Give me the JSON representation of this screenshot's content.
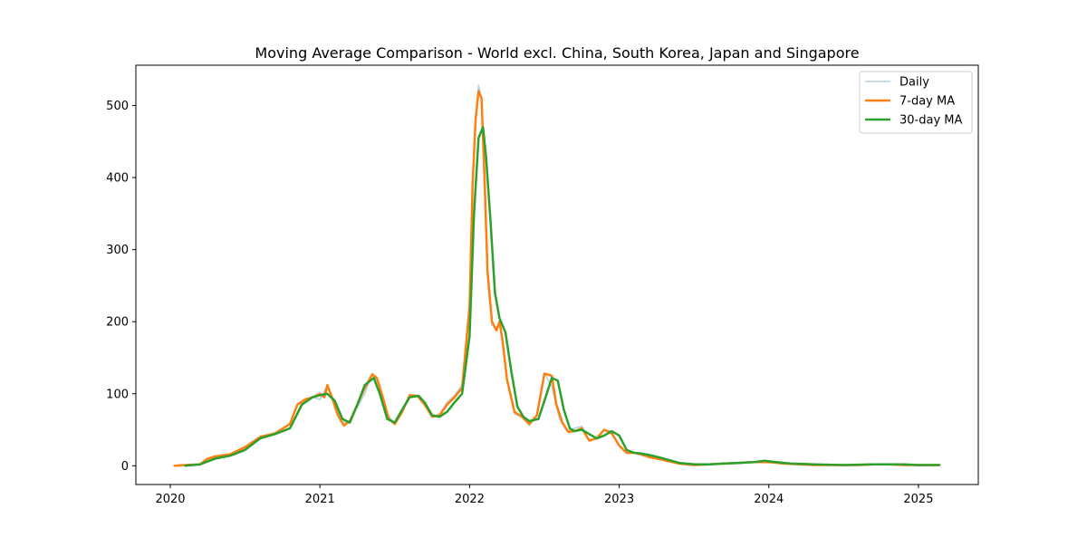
{
  "chart_data": {
    "type": "line",
    "title": "Moving Average Comparison - World excl. China, South Korea, Japan and Singapore",
    "xlabel": "",
    "ylabel": "",
    "x_range": [
      2019.77,
      2025.4
    ],
    "y_range": [
      -26,
      556
    ],
    "x_ticks": [
      2020,
      2021,
      2022,
      2023,
      2024,
      2025
    ],
    "x_tick_labels": [
      "2020",
      "2021",
      "2022",
      "2023",
      "2024",
      "2025"
    ],
    "y_ticks": [
      0,
      100,
      200,
      300,
      400,
      500
    ],
    "y_tick_labels": [
      "0",
      "100",
      "200",
      "300",
      "400",
      "500"
    ],
    "grid": false,
    "legend_position": "upper right",
    "colors": {
      "daily": "#1f77b4",
      "ma7": "#ff7f0e",
      "ma30": "#2ca02c",
      "axis": "#000000"
    },
    "series": [
      {
        "name": "Daily",
        "key": "daily",
        "x": [
          2020.02,
          2020.1,
          2020.2,
          2020.3,
          2020.4,
          2020.5,
          2020.6,
          2020.7,
          2020.8,
          2020.88,
          2020.95,
          2021.0,
          2021.05,
          2021.1,
          2021.15,
          2021.2,
          2021.3,
          2021.35,
          2021.4,
          2021.45,
          2021.5,
          2021.55,
          2021.6,
          2021.65,
          2021.7,
          2021.75,
          2021.8,
          2021.85,
          2021.9,
          2021.95,
          2022.0,
          2022.02,
          2022.04,
          2022.06,
          2022.08,
          2022.1,
          2022.12,
          2022.15,
          2022.18,
          2022.2,
          2022.25,
          2022.3,
          2022.35,
          2022.4,
          2022.45,
          2022.5,
          2022.55,
          2022.6,
          2022.65,
          2022.7,
          2022.75,
          2022.8,
          2022.85,
          2022.9,
          2022.95,
          2023.0,
          2023.05,
          2023.1,
          2023.15,
          2023.2,
          2023.3,
          2023.4,
          2023.5,
          2023.6,
          2023.7,
          2023.8,
          2023.9,
          2024.0,
          2024.1,
          2024.2,
          2024.3,
          2024.4,
          2024.5,
          2024.6,
          2024.7,
          2024.8,
          2024.9,
          2025.0,
          2025.14
        ],
        "values": [
          0,
          1,
          2,
          12,
          15,
          25,
          40,
          45,
          52,
          88,
          95,
          92,
          112,
          88,
          60,
          62,
          100,
          128,
          112,
          72,
          58,
          78,
          98,
          98,
          85,
          68,
          72,
          88,
          98,
          112,
          230,
          400,
          480,
          528,
          510,
          380,
          260,
          195,
          190,
          200,
          120,
          72,
          68,
          56,
          70,
          128,
          110,
          65,
          48,
          52,
          55,
          35,
          40,
          50,
          48,
          28,
          18,
          18,
          14,
          12,
          8,
          3,
          2,
          2,
          3,
          3,
          5,
          6,
          3,
          2,
          2,
          1,
          1,
          1,
          2,
          2,
          1,
          1,
          1
        ]
      },
      {
        "name": "7-day MA",
        "key": "ma7",
        "x": [
          2020.03,
          2020.1,
          2020.2,
          2020.25,
          2020.3,
          2020.4,
          2020.5,
          2020.6,
          2020.7,
          2020.8,
          2020.85,
          2020.9,
          2020.95,
          2021.0,
          2021.03,
          2021.05,
          2021.08,
          2021.12,
          2021.16,
          2021.2,
          2021.25,
          2021.3,
          2021.35,
          2021.38,
          2021.42,
          2021.46,
          2021.5,
          2021.55,
          2021.6,
          2021.65,
          2021.7,
          2021.75,
          2021.8,
          2021.85,
          2021.9,
          2021.95,
          2022.0,
          2022.02,
          2022.04,
          2022.06,
          2022.08,
          2022.1,
          2022.12,
          2022.15,
          2022.18,
          2022.2,
          2022.22,
          2022.25,
          2022.3,
          2022.35,
          2022.4,
          2022.45,
          2022.5,
          2022.55,
          2022.58,
          2022.62,
          2022.66,
          2022.7,
          2022.75,
          2022.8,
          2022.85,
          2022.9,
          2022.95,
          2023.0,
          2023.05,
          2023.1,
          2023.15,
          2023.2,
          2023.3,
          2023.4,
          2023.5,
          2023.6,
          2023.7,
          2023.8,
          2023.9,
          2024.0,
          2024.1,
          2024.2,
          2024.3,
          2024.4,
          2024.5,
          2024.6,
          2024.7,
          2024.8,
          2024.9,
          2025.0,
          2025.14
        ],
        "values": [
          0,
          1,
          2,
          10,
          13,
          16,
          26,
          40,
          45,
          58,
          85,
          92,
          95,
          100,
          95,
          112,
          95,
          70,
          56,
          62,
          85,
          108,
          127,
          122,
          95,
          65,
          58,
          75,
          98,
          97,
          85,
          68,
          70,
          85,
          95,
          108,
          220,
          390,
          480,
          520,
          510,
          400,
          270,
          200,
          188,
          200,
          175,
          120,
          75,
          68,
          58,
          70,
          128,
          125,
          85,
          60,
          47,
          48,
          52,
          35,
          38,
          50,
          45,
          28,
          18,
          18,
          16,
          12,
          8,
          3,
          1,
          2,
          3,
          4,
          5,
          5,
          3,
          2,
          1,
          1,
          1,
          1,
          2,
          2,
          1,
          1,
          1
        ]
      },
      {
        "name": "30-day MA",
        "key": "ma30",
        "x": [
          2020.1,
          2020.2,
          2020.3,
          2020.4,
          2020.5,
          2020.6,
          2020.7,
          2020.8,
          2020.88,
          2020.95,
          2021.0,
          2021.05,
          2021.1,
          2021.15,
          2021.2,
          2021.25,
          2021.3,
          2021.36,
          2021.4,
          2021.45,
          2021.5,
          2021.55,
          2021.6,
          2021.66,
          2021.7,
          2021.75,
          2021.8,
          2021.85,
          2021.9,
          2021.95,
          2022.0,
          2022.03,
          2022.06,
          2022.09,
          2022.11,
          2022.14,
          2022.17,
          2022.2,
          2022.24,
          2022.28,
          2022.32,
          2022.36,
          2022.4,
          2022.46,
          2022.5,
          2022.55,
          2022.59,
          2022.63,
          2022.67,
          2022.7,
          2022.75,
          2022.8,
          2022.85,
          2022.9,
          2022.95,
          2023.0,
          2023.05,
          2023.1,
          2023.15,
          2023.2,
          2023.3,
          2023.4,
          2023.5,
          2023.6,
          2023.7,
          2023.8,
          2023.9,
          2023.97,
          2024.05,
          2024.15,
          2024.3,
          2024.5,
          2024.7,
          2024.8,
          2024.9,
          2025.0,
          2025.14
        ],
        "values": [
          0,
          2,
          10,
          14,
          22,
          38,
          44,
          52,
          85,
          95,
          98,
          100,
          90,
          65,
          60,
          85,
          112,
          122,
          100,
          65,
          60,
          78,
          95,
          97,
          88,
          70,
          68,
          75,
          88,
          100,
          180,
          350,
          455,
          470,
          430,
          340,
          240,
          205,
          185,
          130,
          82,
          68,
          62,
          65,
          90,
          122,
          118,
          78,
          52,
          48,
          50,
          44,
          38,
          42,
          48,
          42,
          22,
          18,
          17,
          15,
          10,
          4,
          2,
          2,
          3,
          4,
          5,
          7,
          5,
          3,
          2,
          1,
          2,
          2,
          2,
          1,
          1
        ]
      }
    ]
  }
}
